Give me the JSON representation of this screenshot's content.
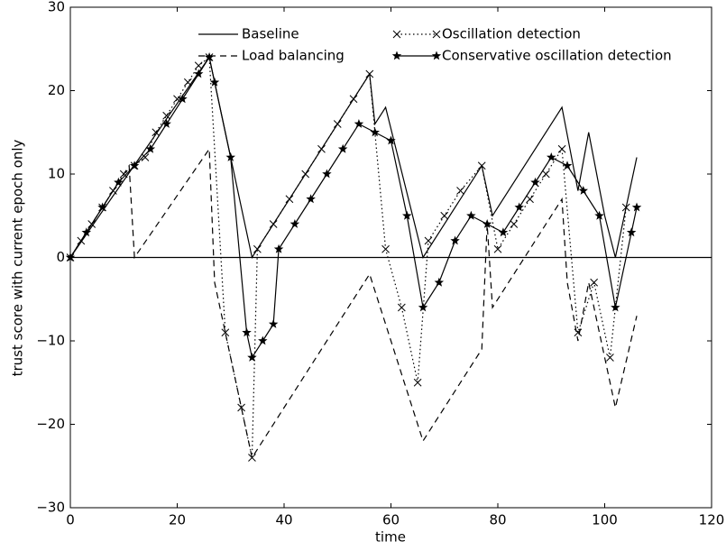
{
  "chart_data": {
    "type": "line",
    "xlabel": "time",
    "ylabel": "trust score with current epoch only",
    "xlim": [
      0,
      120
    ],
    "ylim": [
      -30,
      30
    ],
    "xticks": [
      0,
      20,
      40,
      60,
      80,
      100,
      120
    ],
    "yticks": [
      {
        "value": -30,
        "label": "−30"
      },
      {
        "value": -20,
        "label": "−20"
      },
      {
        "value": -10,
        "label": "−10"
      },
      0,
      10,
      20,
      30
    ],
    "hline": 0,
    "legend": "top",
    "series": [
      {
        "name": "Baseline",
        "color": "#000000",
        "style": "solid",
        "marker": "none",
        "x": [
          0,
          26,
          34,
          56,
          57,
          59,
          66,
          77,
          79,
          92,
          95,
          97,
          100,
          102,
          106
        ],
        "values": [
          0,
          24,
          0,
          22,
          16,
          18,
          0,
          11,
          5,
          18,
          8,
          15,
          5,
          0,
          12
        ]
      },
      {
        "name": "Load balancing",
        "color": "#000000",
        "style": "dashed",
        "marker": "none",
        "x": [
          0,
          11,
          12,
          26,
          27,
          34,
          56,
          66,
          77,
          78,
          79,
          92,
          93,
          95,
          97,
          102,
          106
        ],
        "values": [
          0,
          11,
          0,
          13,
          -3,
          -24,
          -2,
          -22,
          -11,
          4,
          -6,
          7,
          -3,
          -10,
          -3,
          -18,
          -7
        ]
      },
      {
        "name": "Oscillation detection",
        "color": "#000000",
        "style": "dotted",
        "marker": "x",
        "x": [
          0,
          2,
          4,
          6,
          8,
          10,
          12,
          14,
          16,
          18,
          20,
          22,
          24,
          26,
          29,
          32,
          34,
          35,
          38,
          41,
          44,
          47,
          50,
          53,
          56,
          59,
          62,
          65,
          67,
          70,
          73,
          77,
          80,
          83,
          86,
          89,
          92,
          95,
          98,
          101,
          104
        ],
        "values": [
          0,
          2,
          4,
          6,
          8,
          10,
          11,
          12,
          15,
          17,
          19,
          21,
          23,
          24,
          -9,
          -18,
          -24,
          1,
          4,
          7,
          10,
          13,
          16,
          19,
          22,
          1,
          -6,
          -15,
          2,
          5,
          8,
          11,
          1,
          4,
          7,
          10,
          13,
          -9,
          -3,
          -12,
          6
        ]
      },
      {
        "name": "Conservative oscillation detection",
        "color": "#000000",
        "style": "solid",
        "marker": "star",
        "x": [
          0,
          3,
          6,
          9,
          12,
          15,
          18,
          21,
          24,
          26,
          27,
          30,
          33,
          34,
          36,
          38,
          39,
          42,
          45,
          48,
          51,
          54,
          57,
          60,
          63,
          66,
          69,
          72,
          75,
          78,
          81,
          84,
          87,
          90,
          93,
          96,
          99,
          102,
          105,
          106
        ],
        "values": [
          0,
          3,
          6,
          9,
          11,
          13,
          16,
          19,
          22,
          24,
          21,
          12,
          -9,
          -12,
          -10,
          -8,
          1,
          4,
          7,
          10,
          13,
          16,
          15,
          14,
          5,
          -6,
          -3,
          2,
          5,
          4,
          3,
          6,
          9,
          12,
          11,
          8,
          5,
          -6,
          3,
          6
        ]
      }
    ]
  }
}
